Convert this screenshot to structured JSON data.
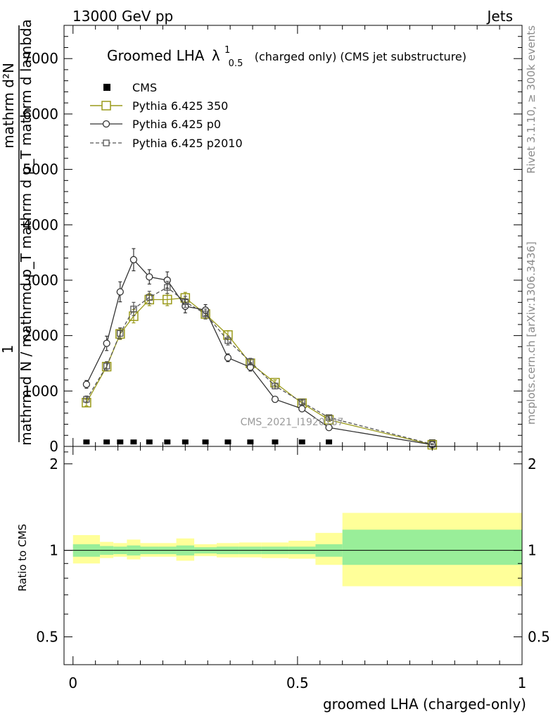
{
  "header": {
    "energy_label": "13000 GeV pp",
    "category_label": "Jets"
  },
  "side_labels": {
    "rivet": "Rivet 3.1.10, ≥ 300k events",
    "mcplots": "mcplots.cern.ch [arXiv:1306.3436]"
  },
  "watermark": "CMS_2021_I1920187",
  "chart_data": [
    {
      "type": "line",
      "title_main": "Groomed LHA",
      "title_lambda": "λ",
      "title_lambda_sup": "1",
      "title_lambda_sub": "0.5",
      "title_rest": "(charged only) (CMS jet substructure)",
      "ylabel_top": "1",
      "ylabel_numerator": "mathrm d²N",
      "ylabel_denominator": "mathrm d N / mathrmd p_T mathrm d p_T mathrm d lambda",
      "xlim": [
        -0.02,
        1.0
      ],
      "ylim": [
        0,
        7600
      ],
      "y_ticks": [
        0,
        1000,
        2000,
        3000,
        4000,
        5000,
        6000,
        7000
      ],
      "y_tick_labels": [
        "0",
        "1000",
        "2000",
        "3000",
        "4000",
        "5000",
        "6000",
        "7000"
      ],
      "legend_position": "top-left",
      "x": [
        0.03,
        0.075,
        0.105,
        0.135,
        0.17,
        0.21,
        0.25,
        0.295,
        0.345,
        0.395,
        0.45,
        0.51,
        0.57,
        0.8
      ],
      "series": [
        {
          "name": "CMS",
          "marker": "filled-square",
          "color": "#000000",
          "values": [
            10,
            10,
            10,
            10,
            10,
            10,
            10,
            10,
            10,
            10,
            10,
            10,
            10,
            10
          ]
        },
        {
          "name": "Pythia 6.425 350",
          "marker": "open-square",
          "color": "#9a9a1a",
          "values": [
            790,
            1440,
            2030,
            2350,
            2650,
            2650,
            2680,
            2390,
            2010,
            1500,
            1150,
            780,
            480,
            30
          ],
          "errors": [
            60,
            80,
            100,
            120,
            110,
            110,
            100,
            90,
            80,
            60,
            50,
            40,
            30,
            10
          ]
        },
        {
          "name": "Pythia 6.425 p0",
          "marker": "open-circle",
          "color": "#333333",
          "values": [
            1120,
            1860,
            2790,
            3370,
            3060,
            3000,
            2530,
            2460,
            1600,
            1430,
            850,
            680,
            340,
            30
          ],
          "errors": [
            70,
            130,
            180,
            200,
            130,
            150,
            120,
            100,
            70,
            70,
            50,
            40,
            30,
            10
          ]
        },
        {
          "name": "Pythia 6.425 p2010",
          "marker": "open-square-small",
          "color": "#555555",
          "values": [
            850,
            1450,
            2040,
            2480,
            2690,
            2870,
            2610,
            2390,
            1910,
            1530,
            1090,
            800,
            520,
            40
          ],
          "errors": [
            60,
            80,
            100,
            120,
            110,
            110,
            100,
            90,
            80,
            60,
            50,
            40,
            30,
            10
          ]
        }
      ]
    },
    {
      "type": "area",
      "ylabel": "Ratio to CMS",
      "xlabel": "groomed LHA (charged-only)",
      "xlim": [
        -0.02,
        1.0
      ],
      "ylim": [
        0.4,
        2.3
      ],
      "y_scale": "log",
      "y_ticks": [
        0.5,
        1,
        2
      ],
      "y_tick_labels": [
        "0.5",
        "1",
        "2"
      ],
      "x_ticks": [
        0,
        0.5,
        1
      ],
      "x_tick_labels": [
        "0",
        "0.5",
        "1"
      ],
      "bin_edges": [
        0.0,
        0.06,
        0.09,
        0.12,
        0.15,
        0.19,
        0.23,
        0.27,
        0.32,
        0.37,
        0.42,
        0.48,
        0.54,
        0.6,
        1.0
      ],
      "stat_band": [
        [
          0.95,
          1.05
        ],
        [
          0.965,
          1.035
        ],
        [
          0.97,
          1.03
        ],
        [
          0.96,
          1.04
        ],
        [
          0.97,
          1.03
        ],
        [
          0.97,
          1.03
        ],
        [
          0.96,
          1.04
        ],
        [
          0.975,
          1.025
        ],
        [
          0.97,
          1.03
        ],
        [
          0.97,
          1.03
        ],
        [
          0.97,
          1.03
        ],
        [
          0.97,
          1.03
        ],
        [
          0.95,
          1.05
        ],
        [
          0.89,
          1.18
        ]
      ],
      "syst_band": [
        [
          0.9,
          1.13
        ],
        [
          0.94,
          1.07
        ],
        [
          0.95,
          1.06
        ],
        [
          0.93,
          1.09
        ],
        [
          0.95,
          1.06
        ],
        [
          0.95,
          1.06
        ],
        [
          0.92,
          1.1
        ],
        [
          0.955,
          1.05
        ],
        [
          0.945,
          1.06
        ],
        [
          0.945,
          1.065
        ],
        [
          0.94,
          1.065
        ],
        [
          0.935,
          1.08
        ],
        [
          0.89,
          1.15
        ],
        [
          0.75,
          1.35
        ]
      ],
      "stat_color": "#99ee99",
      "syst_color": "#ffff99",
      "reference_value": 1
    }
  ]
}
